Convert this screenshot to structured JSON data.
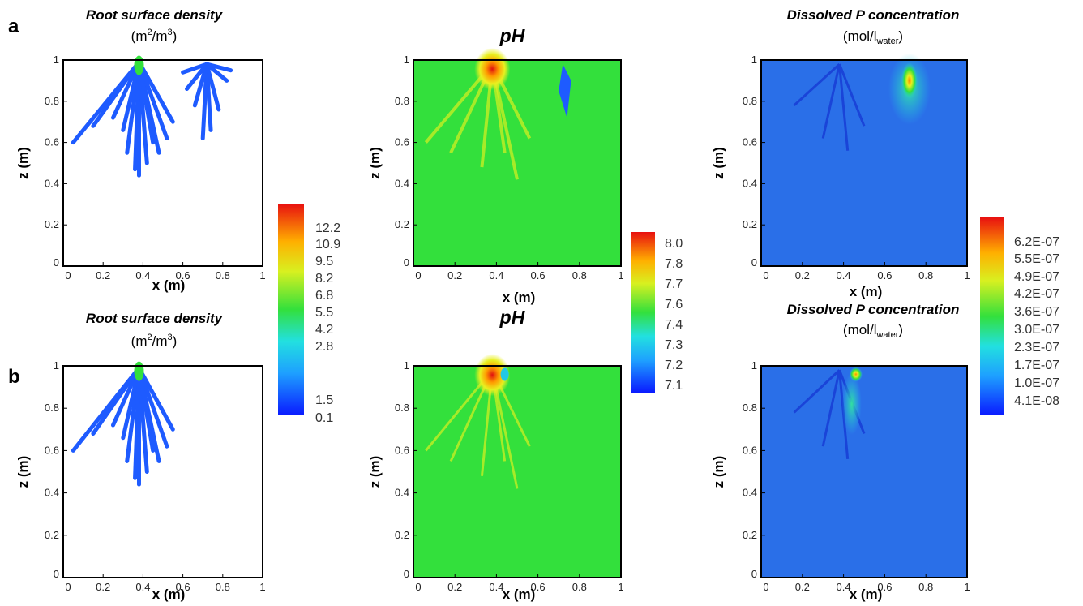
{
  "panel_labels": [
    "a",
    "b"
  ],
  "chart_data": [
    {
      "type": "heatmap",
      "row": "a",
      "field": "root-density",
      "title": "Root surface density",
      "unit_main": "(m",
      "unit_sup1": "2",
      "unit_mid": "/m",
      "unit_sup2": "3",
      "unit_end": ")",
      "xlabel": "x (m)",
      "ylabel": "z (m)",
      "xlim": [
        0,
        1
      ],
      "ylim": [
        0,
        1
      ],
      "xticks": [
        "0",
        "0.2",
        "0.4",
        "0.6",
        "0.8",
        "1"
      ],
      "yticks": [
        "0",
        "0.2",
        "0.4",
        "0.6",
        "0.8",
        "1"
      ]
    },
    {
      "type": "heatmap",
      "row": "a",
      "field": "ph",
      "title": "pH",
      "xlabel": "x (m)",
      "ylabel": "z (m)",
      "xlim": [
        0,
        1
      ],
      "ylim": [
        0,
        1
      ],
      "xticks": [
        "0",
        "0.2",
        "0.4",
        "0.6",
        "0.8",
        "1"
      ],
      "yticks": [
        "0",
        "0.2",
        "0.4",
        "0.6",
        "0.8",
        "1"
      ]
    },
    {
      "type": "heatmap",
      "row": "a",
      "field": "dissolved-p",
      "title": "Dissolved P concentration",
      "unit_main": "(mol/l",
      "unit_sub": "water",
      "unit_end": ")",
      "xlabel": "x (m)",
      "ylabel": "z (m)",
      "xlim": [
        0,
        1
      ],
      "ylim": [
        0,
        1
      ],
      "xticks": [
        "0",
        "0.2",
        "0.4",
        "0.6",
        "0.8",
        "1"
      ],
      "yticks": [
        "0",
        "0.2",
        "0.4",
        "0.6",
        "0.8",
        "1"
      ]
    },
    {
      "type": "heatmap",
      "row": "b",
      "field": "root-density",
      "title": "Root surface density",
      "unit_main": "(m",
      "unit_sup1": "2",
      "unit_mid": "/m",
      "unit_sup2": "3",
      "unit_end": ")",
      "xlabel": "x (m)",
      "ylabel": "z (m)",
      "xlim": [
        0,
        1
      ],
      "ylim": [
        0,
        1
      ],
      "xticks": [
        "0",
        "0.2",
        "0.4",
        "0.6",
        "0.8",
        "1"
      ],
      "yticks": [
        "0",
        "0.2",
        "0.4",
        "0.6",
        "0.8",
        "1"
      ]
    },
    {
      "type": "heatmap",
      "row": "b",
      "field": "ph",
      "title": "pH",
      "xlabel": "x (m)",
      "ylabel": "z (m)",
      "xlim": [
        0,
        1
      ],
      "ylim": [
        0,
        1
      ],
      "xticks": [
        "0",
        "0.2",
        "0.4",
        "0.6",
        "0.8",
        "1"
      ],
      "yticks": [
        "0",
        "0.2",
        "0.4",
        "0.6",
        "0.8",
        "1"
      ]
    },
    {
      "type": "heatmap",
      "row": "b",
      "field": "dissolved-p",
      "title": "Dissolved P concentration",
      "unit_main": "(mol/l",
      "unit_sub": "water",
      "unit_end": ")",
      "xlabel": "x (m)",
      "ylabel": "z (m)",
      "xlim": [
        0,
        1
      ],
      "ylim": [
        0,
        1
      ],
      "xticks": [
        "0",
        "0.2",
        "0.4",
        "0.6",
        "0.8",
        "1"
      ],
      "yticks": [
        "0",
        "0.2",
        "0.4",
        "0.6",
        "0.8",
        "1"
      ]
    }
  ],
  "colorbars": [
    {
      "field": "root-density",
      "labels": [
        "12.2",
        "10.9",
        "9.5",
        "8.2",
        "6.8",
        "5.5",
        "4.2",
        "2.8",
        "1.5",
        "0.1"
      ]
    },
    {
      "field": "ph",
      "labels": [
        "8.0",
        "7.8",
        "7.7",
        "7.6",
        "7.4",
        "7.3",
        "7.2",
        "7.1"
      ]
    },
    {
      "field": "dissolved-p",
      "labels": [
        "6.2E-07",
        "5.5E-07",
        "4.9E-07",
        "4.2E-07",
        "3.6E-07",
        "3.0E-07",
        "2.3E-07",
        "1.7E-07",
        "1.0E-07",
        "4.1E-08"
      ]
    }
  ],
  "colors": {
    "low": "#1e5bff",
    "ph_background": "#33e03c",
    "p_background": "#2a6fe8",
    "high": "#e01010"
  }
}
